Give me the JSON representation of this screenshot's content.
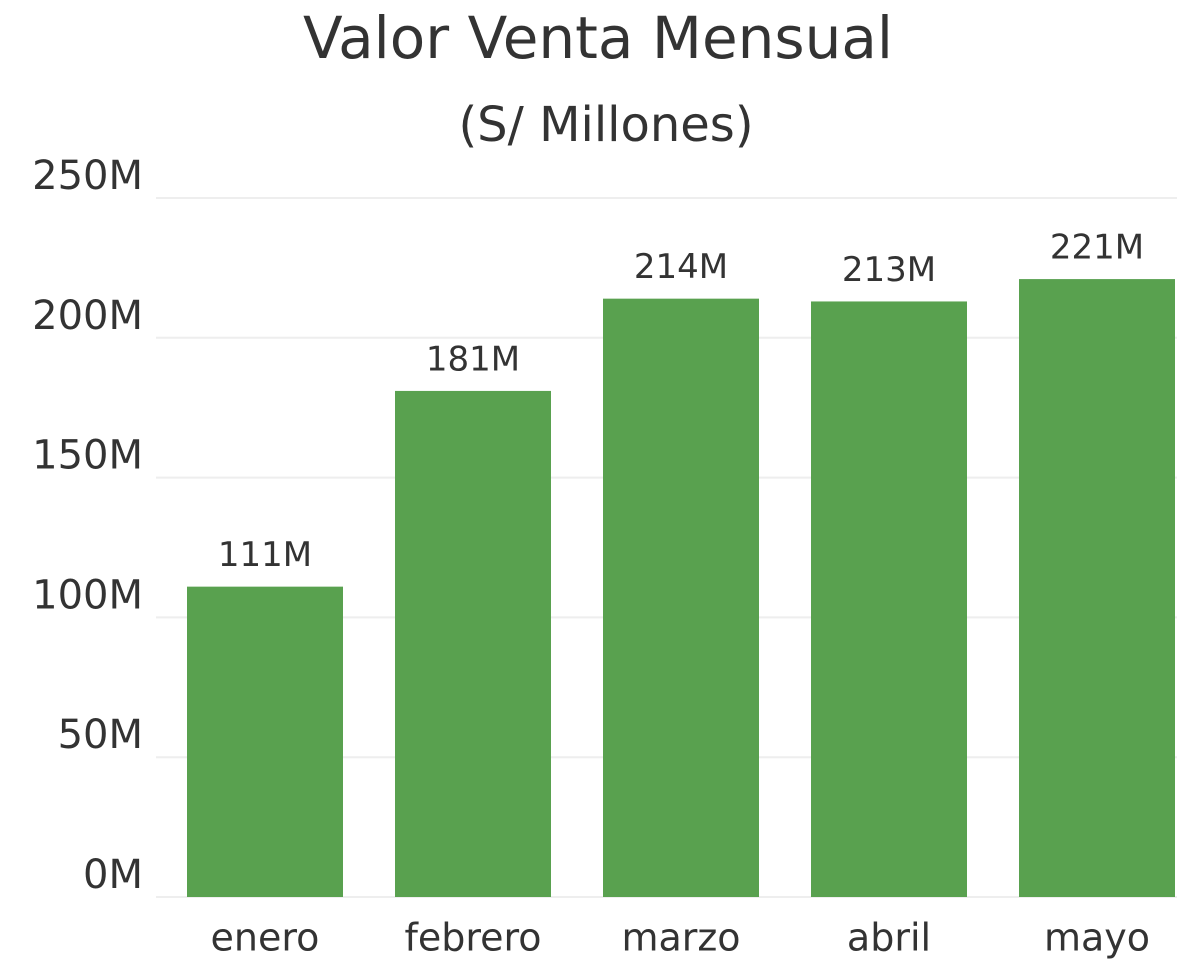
{
  "chart_data": {
    "type": "bar",
    "title": "Valor Venta Mensual",
    "subtitle": "(S/ Millones)",
    "categories": [
      "enero",
      "febrero",
      "marzo",
      "abril",
      "mayo"
    ],
    "values": [
      111,
      181,
      214,
      213,
      221
    ],
    "value_labels": [
      "111M",
      "181M",
      "214M",
      "213M",
      "221M"
    ],
    "color": "#59a14f",
    "ylim": [
      0,
      250
    ],
    "yticks": [
      {
        "value": 0,
        "label": "0M"
      },
      {
        "value": 50,
        "label": "50M"
      },
      {
        "value": 100,
        "label": "100M"
      },
      {
        "value": 150,
        "label": "150M"
      },
      {
        "value": 200,
        "label": "200M"
      },
      {
        "value": 250,
        "label": "250M"
      }
    ],
    "grid": true
  }
}
